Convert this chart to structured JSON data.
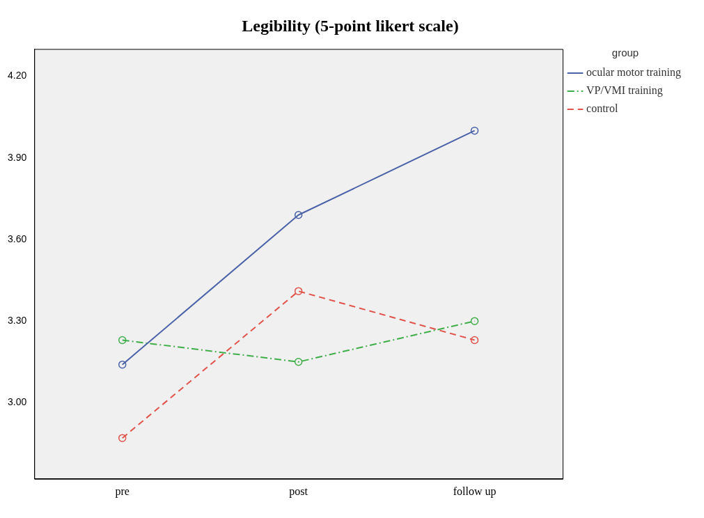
{
  "chart_data": {
    "type": "line",
    "title": "Legibility (5-point likert scale)",
    "legend_title": "group",
    "categories": [
      "pre",
      "post",
      "follow up"
    ],
    "series": [
      {
        "name": "ocular motor training",
        "color": "#4a62a8",
        "values": [
          3.14,
          3.69,
          4.0
        ],
        "line_style": "solid"
      },
      {
        "name": "VP/VMI training",
        "color": "#3fae49",
        "values": [
          3.23,
          3.15,
          3.3
        ],
        "line_style": "dashdot"
      },
      {
        "name": "control",
        "color": "#e0524a",
        "values": [
          2.87,
          3.41,
          3.23
        ],
        "line_style": "dashed"
      }
    ],
    "ylim": [
      2.72,
      4.3
    ],
    "yticks": [
      {
        "value": 3,
        "label": "3.00"
      },
      {
        "value": 3.3,
        "label": "3.30"
      },
      {
        "value": 3.6,
        "label": "3.60"
      },
      {
        "value": 3.9,
        "label": "3.90"
      },
      {
        "value": 4.2,
        "label": "4.20"
      }
    ],
    "grid": false,
    "legend": "right",
    "marker": "circle"
  }
}
